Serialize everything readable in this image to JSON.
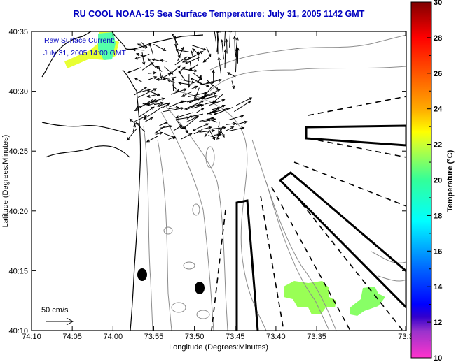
{
  "title": "RU COOL  NOAA-15  Sea Surface Temperature:  July 31, 2005 1142 GMT",
  "annotation": {
    "line1": "Raw Surface Current:",
    "line2": "July 31, 2005 14:00 GMT"
  },
  "scale_label": "50 cm/s",
  "x_axis": {
    "label": "Longitude (Degrees:Minutes)",
    "ticks": [
      "74:10",
      "74:05",
      "74:00",
      "73:55",
      "73:50",
      "73:45",
      "73:40",
      "73:35",
      "73:3"
    ]
  },
  "y_axis": {
    "label": "Latitude (Degrees:Minutes)",
    "ticks": [
      "40:35",
      "40:30",
      "40:25",
      "40:20",
      "40:15",
      "40:10"
    ]
  },
  "colorbar": {
    "label": "Temperature (°C)",
    "ticks": [
      "30",
      "28",
      "26",
      "24",
      "22",
      "20",
      "18",
      "16",
      "14",
      "12",
      "10"
    ],
    "range": [
      10,
      30
    ],
    "stops": [
      {
        "t": 10,
        "color": "#ff33cc"
      },
      {
        "t": 11.5,
        "color": "#9933cc"
      },
      {
        "t": 12.3,
        "color": "#3300cc"
      },
      {
        "t": 13,
        "color": "#0000ff"
      },
      {
        "t": 15,
        "color": "#0066ff"
      },
      {
        "t": 17.7,
        "color": "#00ffff"
      },
      {
        "t": 20,
        "color": "#33ff99"
      },
      {
        "t": 22,
        "color": "#ccff33"
      },
      {
        "t": 22.7,
        "color": "#ffff00"
      },
      {
        "t": 24,
        "color": "#ffaa00"
      },
      {
        "t": 26,
        "color": "#ff5500"
      },
      {
        "t": 28,
        "color": "#ff0000"
      },
      {
        "t": 30,
        "color": "#800000"
      }
    ]
  },
  "chart_data": {
    "type": "heatmap",
    "title": "RU COOL  NOAA-15  Sea Surface Temperature:  July 31, 2005 1142 GMT",
    "xlabel": "Longitude (Degrees:Minutes)",
    "ylabel": "Latitude (Degrees:Minutes)",
    "xlim": [
      "74:10",
      "73:30"
    ],
    "ylim": [
      "40:10",
      "40:35"
    ],
    "sst_patches": [
      {
        "region": "northwest near 74:06-73:57, 40:32-40:35",
        "temp_c": [
          18,
          22.5
        ]
      },
      {
        "region": "southeast near 73:47-73:42, 40:11-40:13",
        "temp_c": [
          20,
          21.5
        ]
      },
      {
        "region": "southeast near 73:36-73:33, 40:11-40:13",
        "temp_c": [
          20,
          21
        ]
      }
    ]
  }
}
